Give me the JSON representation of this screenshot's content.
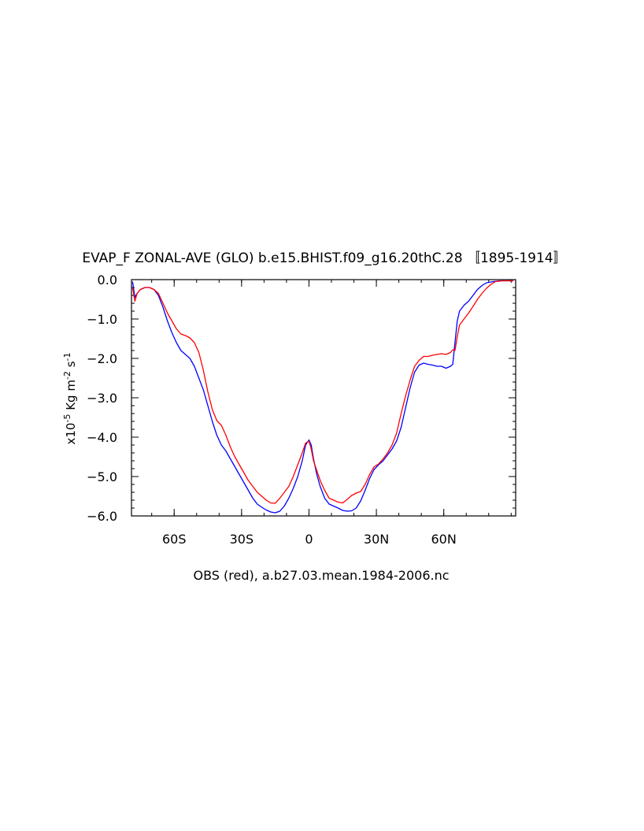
{
  "chart_data": {
    "type": "line",
    "title": "EVAP_F ZONAL-AVE (GLO) b.e15.BHIST.f09_g16.20thC.28 〚1895-1914〛",
    "xlabel": "OBS (red), a.b27.03.mean.1984-2006.nc",
    "ylabel": {
      "prefix": "x10",
      "exp": "-5",
      "units_main": " Kg m",
      "exp2": "-2",
      "units_tail": " s",
      "exp3": "-1"
    },
    "xlim": [
      -79,
      92
    ],
    "ylim": [
      -6.0,
      0.0
    ],
    "x_ticks": [
      {
        "value": -60,
        "label": "60S"
      },
      {
        "value": -30,
        "label": "30S"
      },
      {
        "value": 0,
        "label": "0"
      },
      {
        "value": 30,
        "label": "30N"
      },
      {
        "value": 60,
        "label": "60N"
      }
    ],
    "y_ticks": [
      {
        "value": 0.0,
        "label": "0.0"
      },
      {
        "value": -1.0,
        "label": "−1.0"
      },
      {
        "value": -2.0,
        "label": "−2.0"
      },
      {
        "value": -3.0,
        "label": "−3.0"
      },
      {
        "value": -4.0,
        "label": "−4.0"
      },
      {
        "value": -5.0,
        "label": "−5.0"
      },
      {
        "value": -6.0,
        "label": "−6.0"
      }
    ],
    "grid": false,
    "series": [
      {
        "color": "#0000ff",
        "points": [
          [
            -78.5,
            -0.05
          ],
          [
            -77.5,
            -0.45
          ],
          [
            -76.5,
            -0.35
          ],
          [
            -75,
            -0.25
          ],
          [
            -73,
            -0.2
          ],
          [
            -71,
            -0.2
          ],
          [
            -69,
            -0.25
          ],
          [
            -67,
            -0.4
          ],
          [
            -65,
            -0.7
          ],
          [
            -63,
            -1.05
          ],
          [
            -61,
            -1.35
          ],
          [
            -59,
            -1.6
          ],
          [
            -57,
            -1.8
          ],
          [
            -55,
            -1.9
          ],
          [
            -53,
            -2.0
          ],
          [
            -51,
            -2.2
          ],
          [
            -49,
            -2.5
          ],
          [
            -47,
            -2.8
          ],
          [
            -45,
            -3.2
          ],
          [
            -43,
            -3.6
          ],
          [
            -41,
            -3.95
          ],
          [
            -39,
            -4.2
          ],
          [
            -37,
            -4.35
          ],
          [
            -35,
            -4.55
          ],
          [
            -33,
            -4.75
          ],
          [
            -31,
            -4.95
          ],
          [
            -29,
            -5.15
          ],
          [
            -27,
            -5.35
          ],
          [
            -25,
            -5.55
          ],
          [
            -23,
            -5.7
          ],
          [
            -21,
            -5.78
          ],
          [
            -19,
            -5.85
          ],
          [
            -17,
            -5.9
          ],
          [
            -15,
            -5.92
          ],
          [
            -13,
            -5.88
          ],
          [
            -11,
            -5.75
          ],
          [
            -9,
            -5.55
          ],
          [
            -7,
            -5.3
          ],
          [
            -5,
            -5.0
          ],
          [
            -3,
            -4.6
          ],
          [
            -1.5,
            -4.2
          ],
          [
            0,
            -4.07
          ],
          [
            1,
            -4.2
          ],
          [
            2,
            -4.55
          ],
          [
            3.5,
            -4.95
          ],
          [
            5,
            -5.25
          ],
          [
            7,
            -5.55
          ],
          [
            9,
            -5.7
          ],
          [
            11,
            -5.75
          ],
          [
            13,
            -5.8
          ],
          [
            15,
            -5.86
          ],
          [
            17,
            -5.88
          ],
          [
            19,
            -5.87
          ],
          [
            21,
            -5.8
          ],
          [
            23,
            -5.62
          ],
          [
            25,
            -5.35
          ],
          [
            27,
            -5.05
          ],
          [
            29,
            -4.82
          ],
          [
            31,
            -4.7
          ],
          [
            33,
            -4.6
          ],
          [
            35,
            -4.45
          ],
          [
            37,
            -4.3
          ],
          [
            39,
            -4.1
          ],
          [
            41,
            -3.75
          ],
          [
            43,
            -3.25
          ],
          [
            45,
            -2.75
          ],
          [
            47,
            -2.35
          ],
          [
            49,
            -2.17
          ],
          [
            51,
            -2.12
          ],
          [
            53,
            -2.15
          ],
          [
            55,
            -2.17
          ],
          [
            57,
            -2.2
          ],
          [
            59,
            -2.2
          ],
          [
            61,
            -2.25
          ],
          [
            63,
            -2.2
          ],
          [
            64,
            -2.15
          ],
          [
            65,
            -1.6
          ],
          [
            66,
            -1.05
          ],
          [
            67,
            -0.8
          ],
          [
            69,
            -0.65
          ],
          [
            71,
            -0.55
          ],
          [
            73,
            -0.4
          ],
          [
            75,
            -0.25
          ],
          [
            77,
            -0.15
          ],
          [
            79,
            -0.08
          ],
          [
            82,
            -0.05
          ],
          [
            85,
            -0.03
          ],
          [
            88,
            -0.03
          ],
          [
            91,
            -0.03
          ]
        ]
      },
      {
        "color": "#ff0000",
        "points": [
          [
            -78.5,
            -0.2
          ],
          [
            -77.5,
            -0.55
          ],
          [
            -76.5,
            -0.35
          ],
          [
            -75,
            -0.25
          ],
          [
            -73,
            -0.2
          ],
          [
            -71,
            -0.2
          ],
          [
            -69,
            -0.25
          ],
          [
            -67,
            -0.35
          ],
          [
            -65,
            -0.6
          ],
          [
            -63,
            -0.85
          ],
          [
            -61,
            -1.05
          ],
          [
            -59,
            -1.25
          ],
          [
            -57,
            -1.38
          ],
          [
            -55,
            -1.42
          ],
          [
            -53,
            -1.48
          ],
          [
            -51,
            -1.6
          ],
          [
            -49,
            -1.85
          ],
          [
            -47,
            -2.3
          ],
          [
            -45,
            -2.85
          ],
          [
            -43,
            -3.3
          ],
          [
            -41,
            -3.58
          ],
          [
            -39,
            -3.7
          ],
          [
            -37,
            -3.95
          ],
          [
            -35,
            -4.25
          ],
          [
            -33,
            -4.5
          ],
          [
            -31,
            -4.7
          ],
          [
            -29,
            -4.9
          ],
          [
            -27,
            -5.1
          ],
          [
            -25,
            -5.25
          ],
          [
            -23,
            -5.4
          ],
          [
            -21,
            -5.5
          ],
          [
            -19,
            -5.6
          ],
          [
            -17,
            -5.67
          ],
          [
            -15,
            -5.68
          ],
          [
            -13,
            -5.55
          ],
          [
            -11,
            -5.4
          ],
          [
            -9,
            -5.25
          ],
          [
            -7,
            -5.0
          ],
          [
            -5,
            -4.7
          ],
          [
            -3,
            -4.4
          ],
          [
            -1.5,
            -4.15
          ],
          [
            0,
            -4.1
          ],
          [
            1,
            -4.3
          ],
          [
            2,
            -4.6
          ],
          [
            3.5,
            -4.85
          ],
          [
            5,
            -5.1
          ],
          [
            7,
            -5.35
          ],
          [
            9,
            -5.55
          ],
          [
            11,
            -5.6
          ],
          [
            13,
            -5.65
          ],
          [
            15,
            -5.67
          ],
          [
            17,
            -5.58
          ],
          [
            19,
            -5.48
          ],
          [
            21,
            -5.42
          ],
          [
            23,
            -5.38
          ],
          [
            25,
            -5.2
          ],
          [
            27,
            -4.95
          ],
          [
            29,
            -4.75
          ],
          [
            31,
            -4.68
          ],
          [
            33,
            -4.55
          ],
          [
            35,
            -4.4
          ],
          [
            37,
            -4.2
          ],
          [
            39,
            -3.9
          ],
          [
            41,
            -3.4
          ],
          [
            43,
            -2.95
          ],
          [
            45,
            -2.55
          ],
          [
            47,
            -2.2
          ],
          [
            49,
            -2.05
          ],
          [
            51,
            -1.95
          ],
          [
            53,
            -1.95
          ],
          [
            55,
            -1.92
          ],
          [
            57,
            -1.9
          ],
          [
            59,
            -1.88
          ],
          [
            61,
            -1.9
          ],
          [
            63,
            -1.85
          ],
          [
            64,
            -1.78
          ],
          [
            65,
            -1.8
          ],
          [
            66,
            -1.45
          ],
          [
            67,
            -1.15
          ],
          [
            69,
            -1.0
          ],
          [
            71,
            -0.85
          ],
          [
            73,
            -0.68
          ],
          [
            75,
            -0.5
          ],
          [
            77,
            -0.35
          ],
          [
            79,
            -0.22
          ],
          [
            81,
            -0.12
          ],
          [
            83,
            -0.05
          ],
          [
            86,
            -0.03
          ],
          [
            91,
            -0.03
          ]
        ]
      }
    ]
  }
}
